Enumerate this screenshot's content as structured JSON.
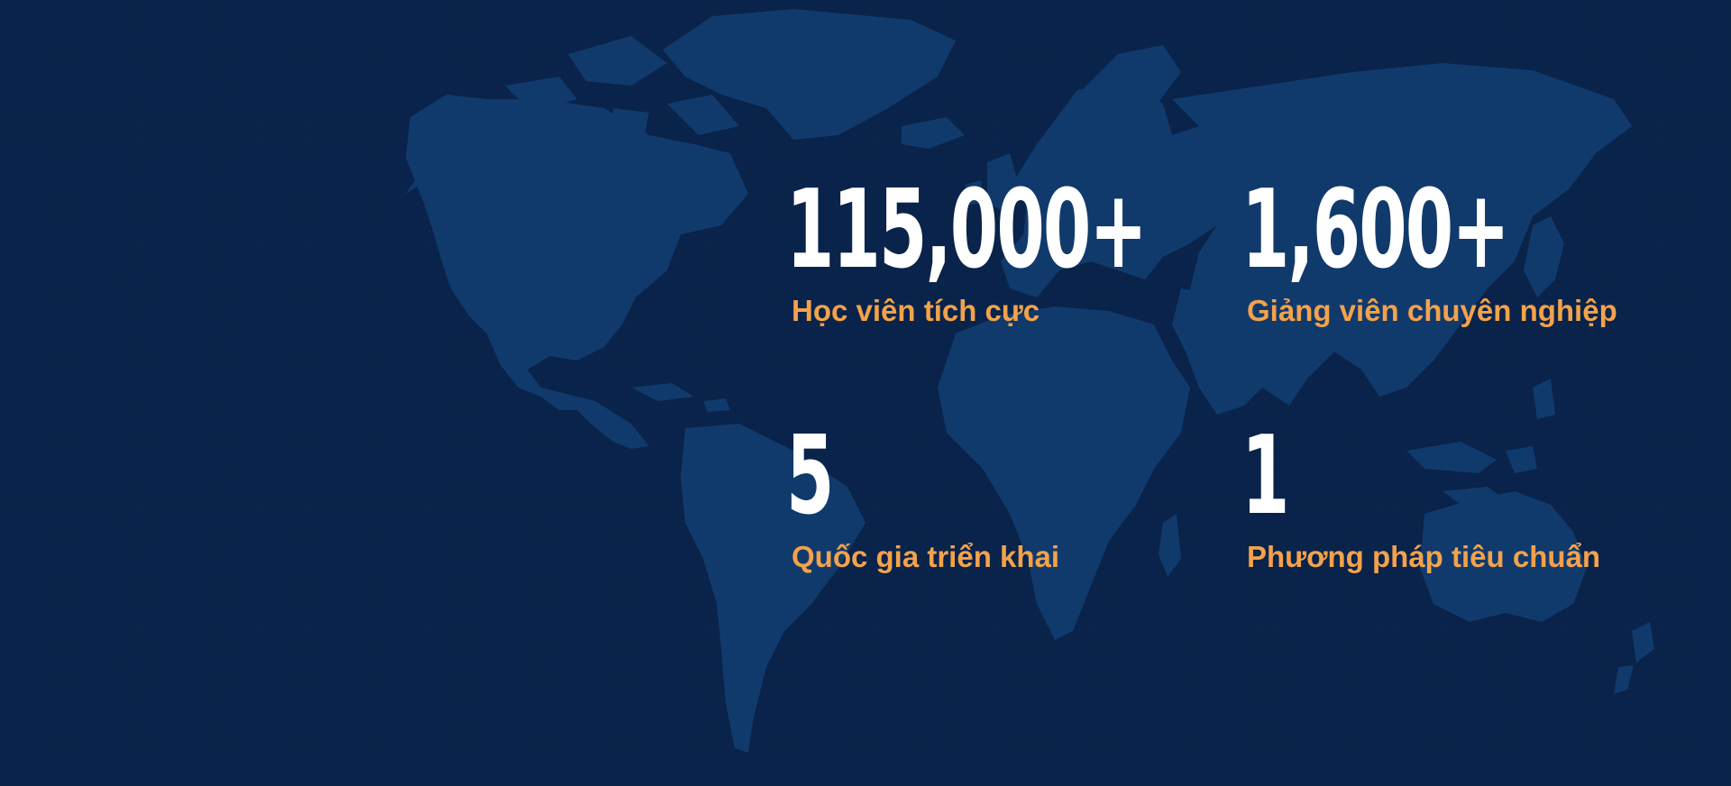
{
  "stats": [
    {
      "value": "115,000+",
      "label": "Học viên tích cực"
    },
    {
      "value": "1,600+",
      "label": "Giảng viên chuyên nghiệp"
    },
    {
      "value": "5",
      "label": "Quốc gia triển khai"
    },
    {
      "value": "1",
      "label": "Phương pháp tiêu chuẩn"
    }
  ],
  "colors": {
    "background": "#09234a",
    "map": "#113a6c",
    "value_text": "#ffffff",
    "label_text": "#f3a24b"
  }
}
